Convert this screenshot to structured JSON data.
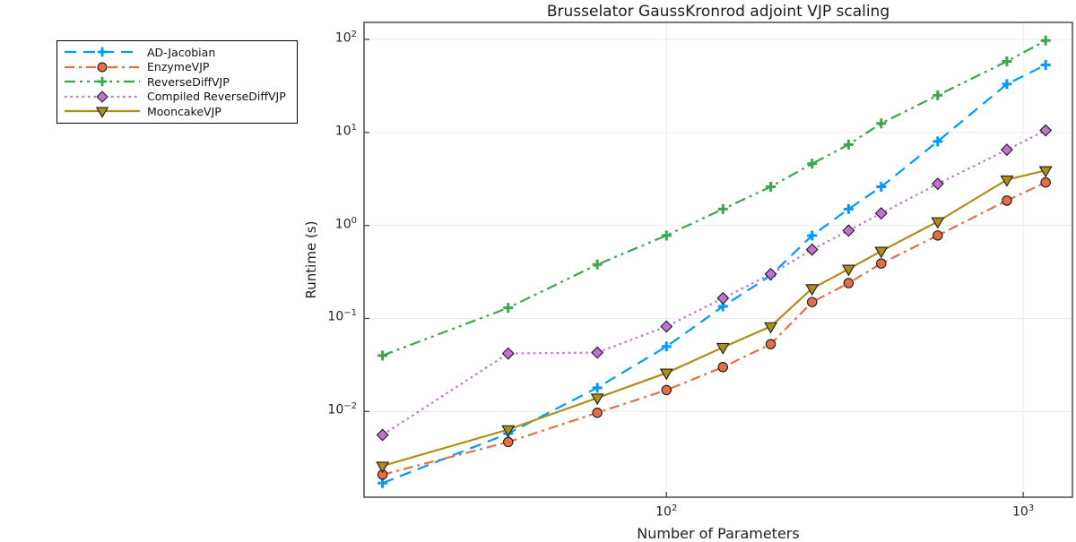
{
  "chart_data": {
    "type": "line",
    "title": "Brusselator GaussKronrod adjoint VJP scaling",
    "xlabel": "Number of Parameters",
    "ylabel": "Runtime (s)",
    "xscale": "log10",
    "yscale": "log10",
    "xlim": [
      14.2,
      1374
    ],
    "ylim": [
      0.0012,
      152
    ],
    "grid": true,
    "legend_position": "top-left-outside",
    "x_ticks": [
      {
        "value": 100,
        "exp": 2
      },
      {
        "value": 1000,
        "exp": 3
      }
    ],
    "y_ticks": [
      {
        "value": 100,
        "exp": 2
      },
      {
        "value": 10,
        "exp": 1
      },
      {
        "value": 1,
        "exp": 0
      },
      {
        "value": 0.1,
        "exp": -1
      },
      {
        "value": 0.01,
        "exp": -2
      }
    ],
    "x": [
      16,
      36,
      64,
      100,
      144,
      196,
      256,
      324,
      400,
      576,
      900,
      1156
    ],
    "series": [
      {
        "name": "AD-Jacobian",
        "color": "#009AF9",
        "dash": "13 8",
        "marker": "cross",
        "values": [
          0.0017,
          0.0058,
          0.018,
          0.05,
          0.135,
          0.29,
          0.78,
          1.5,
          2.6,
          8.0,
          33,
          53
        ]
      },
      {
        "name": "EnzymeVJP",
        "color": "#E26F47",
        "dash": "11 5 3 5",
        "marker": "circle",
        "values": [
          0.0021,
          0.0047,
          0.0097,
          0.017,
          0.03,
          0.053,
          0.15,
          0.24,
          0.39,
          0.78,
          1.85,
          2.9
        ]
      },
      {
        "name": "ReverseDiffVJP",
        "color": "#3EA44E",
        "dash": "12 5 3 5 3 5",
        "marker": "cross",
        "values": [
          0.04,
          0.13,
          0.38,
          0.78,
          1.5,
          2.6,
          4.6,
          7.4,
          12.5,
          25,
          58,
          97
        ]
      },
      {
        "name": "Compiled ReverseDiffVJP",
        "color": "#C371D2",
        "dash": "2.5 4",
        "marker": "diamond",
        "values": [
          0.0056,
          0.042,
          0.043,
          0.082,
          0.165,
          0.3,
          0.55,
          0.88,
          1.35,
          2.8,
          6.5,
          10.5
        ]
      },
      {
        "name": "MooncakeVJP",
        "color": "#AC8E18",
        "dash": "",
        "marker": "dtriangle",
        "values": [
          0.0026,
          0.0064,
          0.014,
          0.026,
          0.049,
          0.082,
          0.21,
          0.34,
          0.53,
          1.1,
          3.1,
          3.9
        ]
      }
    ]
  }
}
